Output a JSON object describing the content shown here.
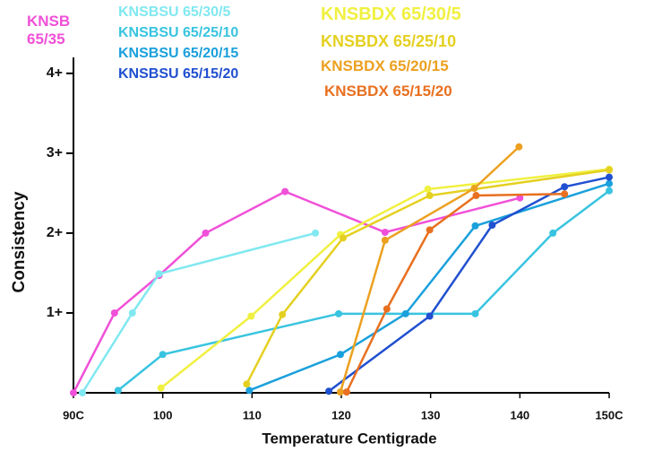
{
  "chart_data": {
    "type": "line",
    "xlabel": "Temperature  Centigrade",
    "ylabel": "Consistency",
    "xlim": [
      90,
      150
    ],
    "ylim": [
      0,
      4.2
    ],
    "xticks": [
      {
        "value": 90,
        "label": "90C"
      },
      100,
      110,
      120,
      130,
      140,
      {
        "value": 150,
        "label": "150C"
      }
    ],
    "yticks": [
      {
        "value": 1,
        "label": "1+"
      },
      {
        "value": 2,
        "label": "2+"
      },
      {
        "value": 3,
        "label": "3+"
      },
      {
        "value": 4,
        "label": "4+"
      }
    ],
    "series": [
      {
        "name": "KNSB 65/35",
        "color": "#f050d8",
        "x": [
          90,
          94.6,
          99.6,
          104.8,
          113.7,
          124.9,
          140
        ],
        "values": [
          0,
          1.0,
          1.47,
          2.0,
          2.52,
          2.01,
          2.44
        ]
      },
      {
        "name": "KNSBSU 65/30/5",
        "color": "#80e8f0",
        "x": [
          91,
          96.6,
          99.6,
          117.1
        ],
        "values": [
          0,
          1.0,
          1.49,
          2.0
        ]
      },
      {
        "name": "KNSBSU 65/25/10",
        "color": "#38c4e0",
        "x": [
          95,
          100,
          119.7,
          135,
          143.7,
          150
        ],
        "values": [
          0.03,
          0.48,
          0.99,
          0.99,
          2.0,
          2.53
        ]
      },
      {
        "name": "KNSBSU 65/20/15",
        "color": "#1aa0dc",
        "x": [
          109.7,
          119.9,
          127.2,
          135,
          150
        ],
        "values": [
          0.03,
          0.48,
          0.99,
          2.09,
          2.62
        ]
      },
      {
        "name": "KNSBSU 65/15/20",
        "color": "#2050d0",
        "x": [
          118.6,
          129.9,
          136.9,
          145,
          150
        ],
        "values": [
          0.02,
          0.96,
          2.1,
          2.58,
          2.7
        ]
      },
      {
        "name": "KNSBDX 65/30/5",
        "color": "#f0f040",
        "x": [
          99.8,
          109.9,
          119.9,
          129.7,
          150
        ],
        "values": [
          0.06,
          0.96,
          1.98,
          2.55,
          2.8
        ]
      },
      {
        "name": "KNSBDX 65/25/10",
        "color": "#e4d020",
        "x": [
          109.4,
          113.4,
          120.2,
          129.9,
          150
        ],
        "values": [
          0.11,
          0.98,
          1.94,
          2.47,
          2.79
        ]
      },
      {
        "name": "KNSBDX 65/20/15",
        "color": "#eca020",
        "x": [
          119.9,
          124.9,
          134.9,
          139.9
        ],
        "values": [
          0.01,
          1.91,
          2.56,
          3.08
        ]
      },
      {
        "name": "KNSBDX 65/15/20",
        "color": "#e87020",
        "x": [
          120.6,
          125.1,
          129.9,
          135.1,
          145
        ],
        "values": [
          0.01,
          1.05,
          2.04,
          2.47,
          2.49
        ]
      }
    ]
  }
}
